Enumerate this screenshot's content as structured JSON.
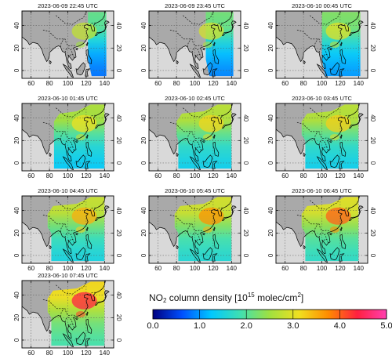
{
  "panels": [
    {
      "title": "2023-06-09 22:45 UTC",
      "coverage": [
        122,
        142
      ],
      "fill_level": 0.38,
      "eastern_level": 0.55
    },
    {
      "title": "2023-06-09 23:45 UTC",
      "coverage": [
        112,
        142
      ],
      "fill_level": 0.4,
      "eastern_level": 0.58
    },
    {
      "title": "2023-06-10 00:45 UTC",
      "coverage": [
        100,
        142
      ],
      "fill_level": 0.42,
      "eastern_level": 0.6
    },
    {
      "title": "2023-06-10 01:45 UTC",
      "coverage": [
        85,
        140
      ],
      "fill_level": 0.48,
      "eastern_level": 0.62
    },
    {
      "title": "2023-06-10 02:45 UTC",
      "coverage": [
        80,
        140
      ],
      "fill_level": 0.5,
      "eastern_level": 0.64
    },
    {
      "title": "2023-06-10 03:45 UTC",
      "coverage": [
        78,
        140
      ],
      "fill_level": 0.5,
      "eastern_level": 0.65
    },
    {
      "title": "2023-06-10 04:45 UTC",
      "coverage": [
        78,
        140
      ],
      "fill_level": 0.52,
      "eastern_level": 0.7
    },
    {
      "title": "2023-06-10 05:45 UTC",
      "coverage": [
        78,
        140
      ],
      "fill_level": 0.54,
      "eastern_level": 0.74
    },
    {
      "title": "2023-06-10 06:45 UTC",
      "coverage": [
        78,
        140
      ],
      "fill_level": 0.56,
      "eastern_level": 0.8
    },
    {
      "title": "2023-06-10 07:45 UTC",
      "coverage": [
        78,
        140
      ],
      "fill_level": 0.6,
      "eastern_level": 0.88
    }
  ],
  "axes": {
    "lon_ticks": [
      "60",
      "80",
      "100",
      "120",
      "140"
    ],
    "lat_ticks": [
      "40",
      "20",
      "0"
    ]
  },
  "colorbar": {
    "title_main": "NO",
    "title_sub": "2",
    "title_rest": " column density [10",
    "title_sup": "15",
    "title_unit": " molec/cm",
    "title_unit_sup": "2",
    "title_end": "]",
    "ticks": [
      "0.0",
      "1.0",
      "2.0",
      "3.0",
      "4.0",
      "5.0"
    ],
    "range": [
      0,
      5
    ],
    "colors": [
      "#000080",
      "#0050ff",
      "#00c8ff",
      "#40e0b0",
      "#a0e040",
      "#f0e020",
      "#ff8c00",
      "#ff2040",
      "#ff40b0"
    ]
  },
  "colors": {
    "land": "#a9a9a9",
    "sea": "#d9d9d9",
    "coast": "#000000",
    "grid": "#555555"
  }
}
